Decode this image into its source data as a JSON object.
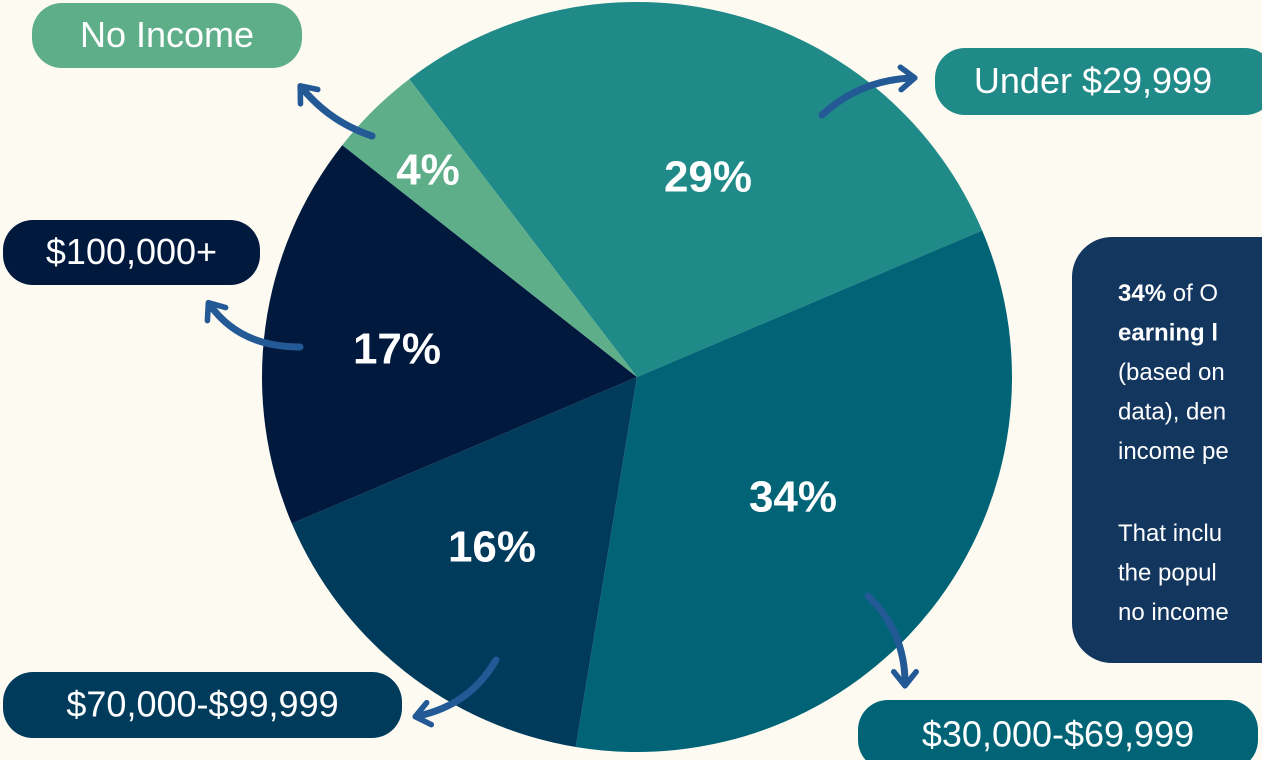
{
  "chart_data": {
    "type": "pie",
    "categories": [
      "Under $29,999",
      "$30,000-$69,999",
      "$70,000-$99,999",
      "$100,000+",
      "No Income"
    ],
    "values": [
      29,
      34,
      16,
      17,
      4
    ],
    "value_labels": [
      "29%",
      "34%",
      "16%",
      "17%",
      "4%"
    ],
    "colors": [
      "#1f8a87",
      "#006476",
      "#003b5c",
      "#00193d",
      "#5fae8a"
    ],
    "note": {
      "paragraphs": [
        [
          [
            {
              "text": "34%",
              "bold": true
            },
            {
              "text": " of O",
              "bold": false
            }
          ],
          [
            {
              "text": "earning l",
              "bold": true
            }
          ],
          [
            {
              "text": "(based on",
              "bold": false
            }
          ],
          [
            {
              "text": "data), den",
              "bold": false
            }
          ],
          [
            {
              "text": "income pe",
              "bold": false
            }
          ]
        ],
        [
          [
            {
              "text": "That inclu",
              "bold": false
            }
          ],
          [
            {
              "text": "the popul",
              "bold": false
            }
          ],
          [
            {
              "text": "no income",
              "bold": false
            }
          ]
        ]
      ]
    }
  }
}
